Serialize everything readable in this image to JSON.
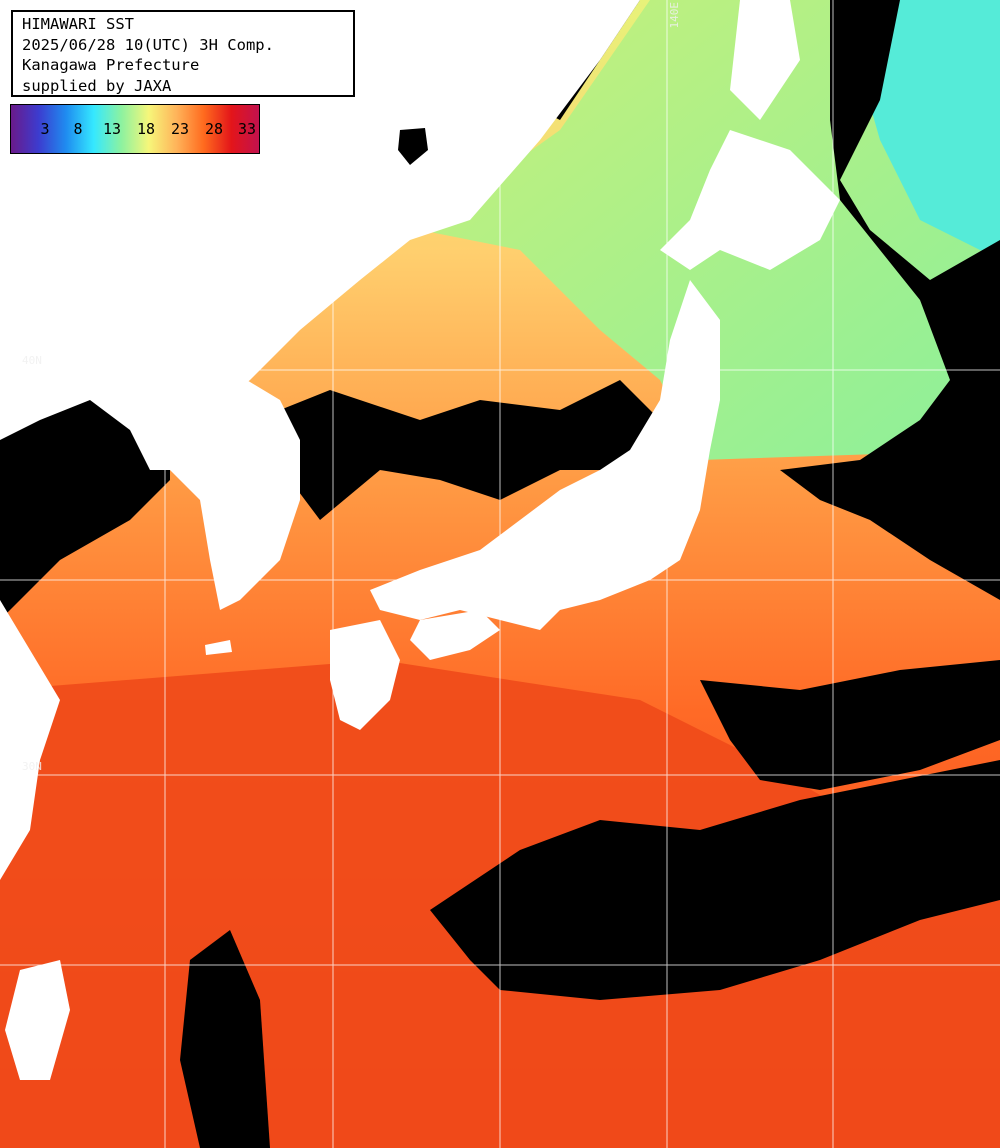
{
  "header": {
    "title": "HIMAWARI SST",
    "datetime": "2025/06/28 10(UTC) 3H Comp.",
    "region": "Kanagawa Prefecture",
    "credit": "supplied by JAXA"
  },
  "legend": {
    "labels": [
      "3",
      "8",
      "13",
      "18",
      "23",
      "28",
      "33"
    ],
    "colors": [
      "#6a1a8a",
      "#3c3ccf",
      "#1f8cf0",
      "#35e8ff",
      "#8cf2a0",
      "#f6f67a",
      "#ffb45a",
      "#ff6a1e",
      "#e3151a",
      "#c2124e"
    ]
  },
  "grid": {
    "label_top": "140E",
    "label_left_upper": "40N",
    "label_left_lower": "30N"
  },
  "colors": {
    "land": "#ffffff",
    "no_data": "#000000",
    "grid_line": "#ffffff",
    "sst_cold": "#4ef2e0",
    "sst_cool": "#96f07c",
    "sst_mild": "#eef67a",
    "sst_warm": "#ffb455",
    "sst_hot": "#ff7a2c",
    "sst_hottest": "#ee3c16"
  }
}
